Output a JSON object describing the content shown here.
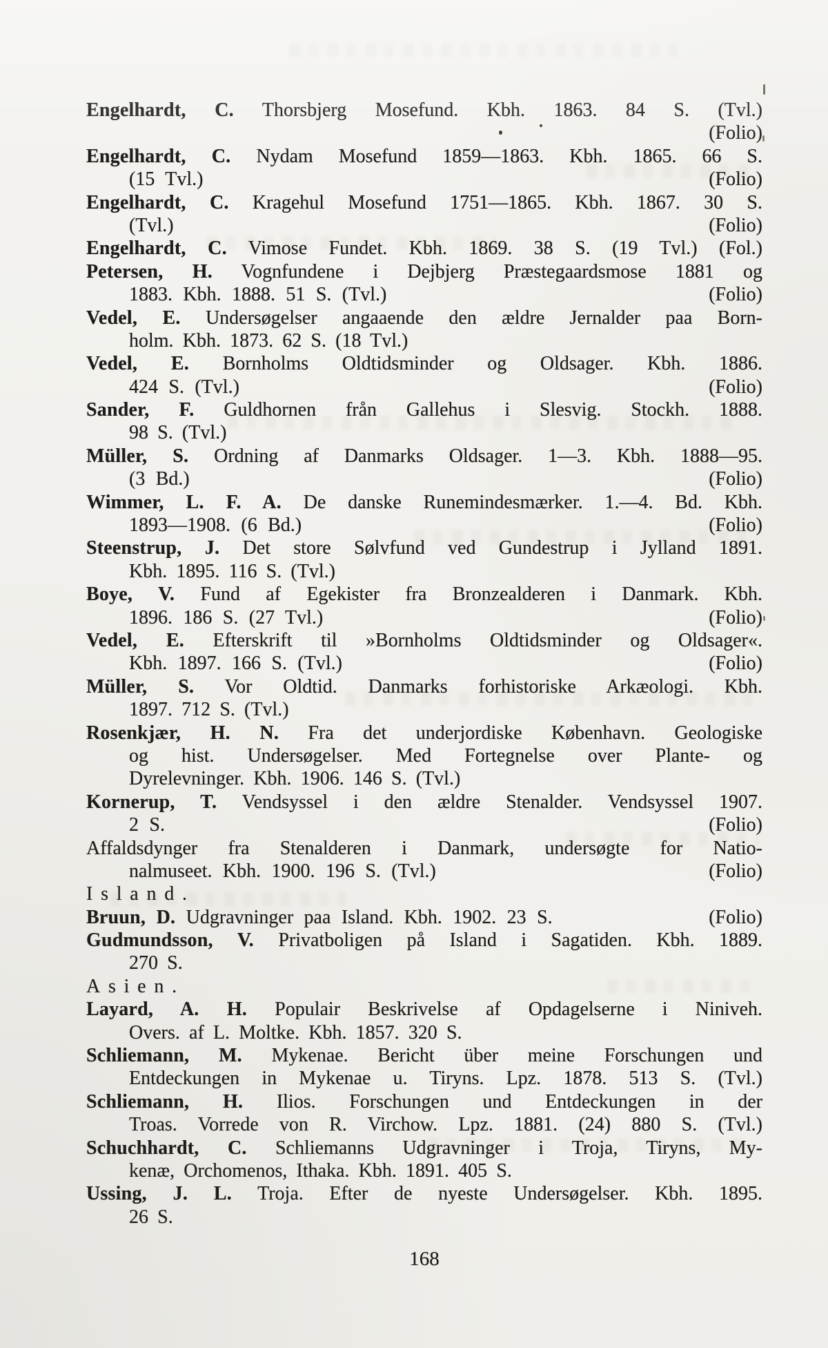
{
  "document": {
    "page_number": "168",
    "colors": {
      "paper": "#f3f2ee",
      "ink": "#1d1b18"
    },
    "lines": [
      {
        "indent": 0,
        "bold": "Engelhardt, C.",
        "text": "Thorsbjerg Mosefund. Kbh. 1863. 84 S. (Tvl.)",
        "align": "justify"
      },
      {
        "indent": 1,
        "text": "",
        "right": "(Folio)",
        "align": "split"
      },
      {
        "indent": 0,
        "bold": "Engelhardt, C.",
        "text": "Nydam Mosefund 1859—1863. Kbh. 1865. 66 S.",
        "align": "justify"
      },
      {
        "indent": 1,
        "text": "(15 Tvl.)",
        "right": "(Folio)",
        "align": "split"
      },
      {
        "indent": 0,
        "bold": "Engelhardt, C.",
        "text": "Kragehul Mosefund 1751—1865. Kbh. 1867. 30 S.",
        "align": "justify"
      },
      {
        "indent": 1,
        "text": "(Tvl.)",
        "right": "(Folio)",
        "align": "split"
      },
      {
        "indent": 0,
        "bold": "Engelhardt, C.",
        "text": "Vimose Fundet. Kbh. 1869. 38 S. (19 Tvl.) (Fol.)",
        "align": "justify"
      },
      {
        "indent": 0,
        "bold": "Petersen, H.",
        "text": "Vognfundene i Dejbjerg Præstegaardsmose 1881 og",
        "align": "justify"
      },
      {
        "indent": 1,
        "text": "1883. Kbh. 1888. 51 S. (Tvl.)",
        "right": "(Folio)",
        "align": "split"
      },
      {
        "indent": 0,
        "bold": "Vedel, E.",
        "text": "Undersøgelser angaaende den ældre Jernalder paa Born-",
        "align": "justify"
      },
      {
        "indent": 1,
        "text": "holm. Kbh. 1873. 62 S. (18 Tvl.)",
        "align": "left"
      },
      {
        "indent": 0,
        "bold": "Vedel, E.",
        "text": "Bornholms Oldtidsminder og Oldsager. Kbh. 1886.",
        "align": "justify"
      },
      {
        "indent": 1,
        "text": "424 S. (Tvl.)",
        "right": "(Folio)",
        "align": "split"
      },
      {
        "indent": 0,
        "bold": "Sander, F.",
        "text": "Guldhornen från Gallehus i Slesvig. Stockh. 1888.",
        "align": "justify"
      },
      {
        "indent": 1,
        "text": "98 S. (Tvl.)",
        "align": "left"
      },
      {
        "indent": 0,
        "bold": "Müller, S.",
        "text": "Ordning af Danmarks Oldsager. 1—3. Kbh. 1888—95.",
        "align": "justify"
      },
      {
        "indent": 1,
        "text": "(3 Bd.)",
        "right": "(Folio)",
        "align": "split"
      },
      {
        "indent": 0,
        "bold": "Wimmer, L. F. A.",
        "text": "De danske Runemindesmærker. 1.—4. Bd. Kbh.",
        "align": "justify"
      },
      {
        "indent": 1,
        "text": "1893—1908. (6 Bd.)",
        "right": "(Folio)",
        "align": "split"
      },
      {
        "indent": 0,
        "bold": "Steenstrup, J.",
        "text": "Det store Sølvfund ved Gundestrup i Jylland 1891.",
        "align": "justify"
      },
      {
        "indent": 1,
        "text": "Kbh. 1895. 116 S. (Tvl.)",
        "align": "left"
      },
      {
        "indent": 0,
        "bold": "Boye, V.",
        "text": "Fund af Egekister fra Bronzealderen i Danmark. Kbh.",
        "align": "justify"
      },
      {
        "indent": 1,
        "text": "1896. 186 S. (27 Tvl.)",
        "right": "(Folio)",
        "align": "split"
      },
      {
        "indent": 0,
        "bold": "Vedel, E.",
        "text": "Efterskrift til »Bornholms Oldtidsminder og Oldsager«.",
        "align": "justify"
      },
      {
        "indent": 1,
        "text": "Kbh. 1897. 166 S. (Tvl.)",
        "right": "(Folio)",
        "align": "split"
      },
      {
        "indent": 0,
        "bold": "Müller, S.",
        "text": "Vor Oldtid. Danmarks forhistoriske Arkæologi. Kbh.",
        "align": "justify"
      },
      {
        "indent": 1,
        "text": "1897. 712 S. (Tvl.)",
        "align": "left"
      },
      {
        "indent": 0,
        "bold": "Rosenkjær, H. N.",
        "text": "Fra det underjordiske København. Geologiske",
        "align": "justify"
      },
      {
        "indent": 1,
        "text": "og hist. Undersøgelser. Med Fortegnelse over Plante- og",
        "align": "justify"
      },
      {
        "indent": 1,
        "text": "Dyrelevninger. Kbh. 1906. 146 S. (Tvl.)",
        "align": "left"
      },
      {
        "indent": 0,
        "bold": "Kornerup, T.",
        "text": "Vendsyssel i den ældre Stenalder. Vendsyssel 1907.",
        "align": "justify"
      },
      {
        "indent": 1,
        "text": "2 S.",
        "right": "(Folio)",
        "align": "split"
      },
      {
        "indent": 0,
        "text": "Affaldsdynger fra Stenalderen i Danmark, undersøgte for Natio-",
        "align": "justify"
      },
      {
        "indent": 1,
        "text": "nalmuseet. Kbh. 1900. 196 S. (Tvl.)",
        "right": "(Folio)",
        "align": "split"
      },
      {
        "indent": 0,
        "text": "Island.",
        "align": "left",
        "spaced": true
      },
      {
        "indent": 0,
        "bold": "Bruun, D.",
        "text": "Udgravninger paa Island. Kbh. 1902. 23 S.",
        "right": "(Folio)",
        "align": "split"
      },
      {
        "indent": 0,
        "bold": "Gudmundsson, V.",
        "text": "Privatboligen på Island i Sagatiden. Kbh. 1889.",
        "align": "justify"
      },
      {
        "indent": 1,
        "text": "270 S.",
        "align": "left"
      },
      {
        "indent": 0,
        "text": "Asien.",
        "align": "left",
        "spaced": true
      },
      {
        "indent": 0,
        "bold": "Layard, A. H.",
        "text": "Populair Beskrivelse af Opdagelserne i Niniveh.",
        "align": "justify"
      },
      {
        "indent": 1,
        "text": "Overs. af L. Moltke. Kbh. 1857. 320 S.",
        "align": "left"
      },
      {
        "indent": 0,
        "bold": "Schliemann, M.",
        "text": "Mykenae. Bericht über meine Forschungen und",
        "align": "justify"
      },
      {
        "indent": 1,
        "text": "Entdeckungen in Mykenae u. Tiryns. Lpz. 1878. 513 S. (Tvl.)",
        "align": "justify"
      },
      {
        "indent": 0,
        "bold": "Schliemann, H.",
        "text": "Ilios. Forschungen und Entdeckungen in der",
        "align": "justify"
      },
      {
        "indent": 1,
        "text": "Troas. Vorrede von R. Virchow. Lpz. 1881. (24) 880 S. (Tvl.)",
        "align": "justify"
      },
      {
        "indent": 0,
        "bold": "Schuchhardt, C.",
        "text": "Schliemanns Udgravninger i Troja, Tiryns, My-",
        "align": "justify"
      },
      {
        "indent": 1,
        "text": "kenæ, Orchomenos, Ithaka. Kbh. 1891. 405 S.",
        "align": "left"
      },
      {
        "indent": 0,
        "bold": "Ussing, J. L.",
        "text": "Troja. Efter de nyeste Undersøgelser. Kbh. 1895.",
        "align": "justify"
      },
      {
        "indent": 1,
        "text": "26 S.",
        "align": "left"
      }
    ]
  }
}
